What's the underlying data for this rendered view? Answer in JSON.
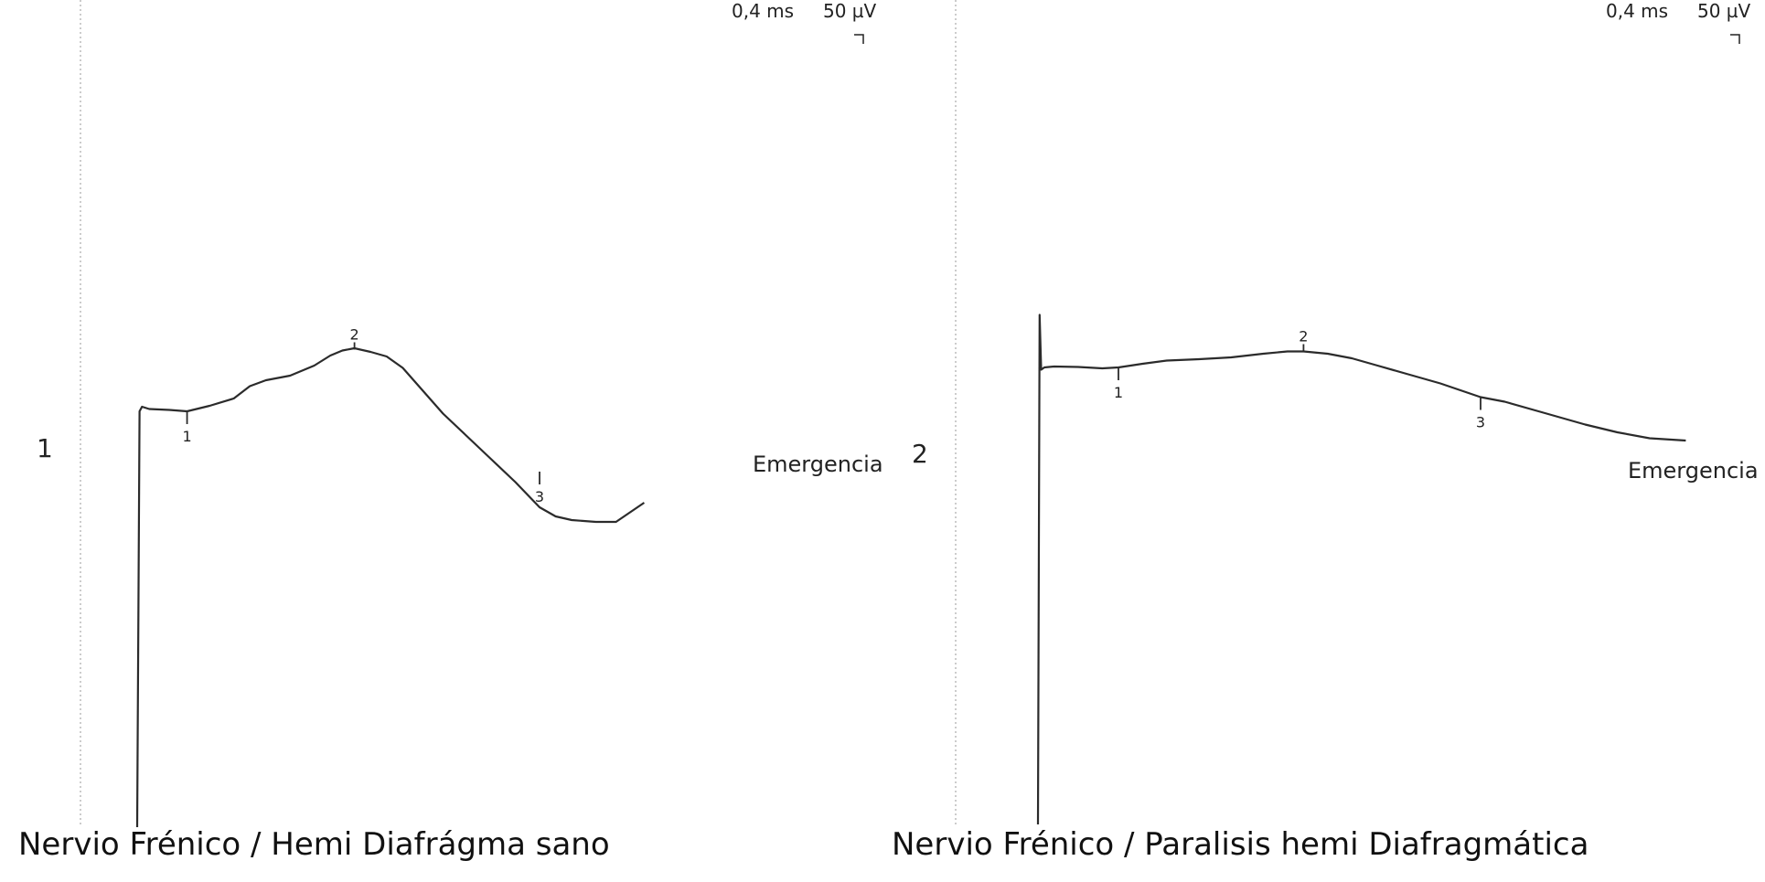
{
  "chart_data": [
    {
      "type": "line",
      "channel_label": "1",
      "caption": "Nervio Frénico / Hemi Diafrágma sano",
      "scale": {
        "time_label": "0,4 ms",
        "amplitude_label": "50 µV"
      },
      "annotation": "Emergencia",
      "markers": [
        {
          "label": "1",
          "x": 0.62,
          "y": 0
        },
        {
          "label": "2",
          "x": 2.7,
          "y": 135
        },
        {
          "label": "3",
          "x": 5.0,
          "y": -132
        }
      ],
      "series": [
        {
          "x": [
            0,
            0.03,
            0.06,
            0.15,
            0.4,
            0.62,
            0.9,
            1.2,
            1.4,
            1.6,
            1.9,
            2.2,
            2.4,
            2.55,
            2.7,
            2.9,
            3.1,
            3.3,
            3.55,
            3.8,
            4.1,
            4.4,
            4.7,
            5.0,
            5.2,
            5.4,
            5.7,
            5.95,
            6.3
          ],
          "y": [
            -1000,
            0,
            10,
            5,
            3,
            0,
            12,
            28,
            55,
            68,
            78,
            100,
            122,
            133,
            138,
            130,
            120,
            95,
            45,
            -5,
            -55,
            -105,
            -155,
            -210,
            -230,
            -238,
            -242,
            -242,
            -200
          ]
        }
      ]
    },
    {
      "type": "line",
      "channel_label": "2",
      "caption": "Nervio Frénico / Paralisis hemi Diafragmática",
      "scale": {
        "time_label": "0,4 ms",
        "amplitude_label": "50 µV"
      },
      "annotation": "Emergencia",
      "markers": [
        {
          "label": "1",
          "x": 1.0,
          "y": 0
        },
        {
          "label": "2",
          "x": 3.3,
          "y": 35
        },
        {
          "label": "3",
          "x": 5.5,
          "y": -65
        }
      ],
      "series": [
        {
          "x": [
            0,
            0.02,
            0.04,
            0.08,
            0.2,
            0.5,
            0.8,
            1.0,
            1.3,
            1.6,
            2.0,
            2.4,
            2.8,
            3.1,
            3.3,
            3.6,
            3.9,
            4.2,
            4.6,
            5.0,
            5.5,
            5.8,
            6.3,
            6.8,
            7.2,
            7.6,
            8.05
          ],
          "y": [
            -1000,
            115,
            -5,
            0,
            2,
            1,
            -2,
            0,
            8,
            15,
            18,
            22,
            30,
            35,
            35,
            30,
            20,
            5,
            -15,
            -35,
            -65,
            -75,
            -100,
            -125,
            -142,
            -155,
            -160
          ]
        }
      ]
    }
  ]
}
